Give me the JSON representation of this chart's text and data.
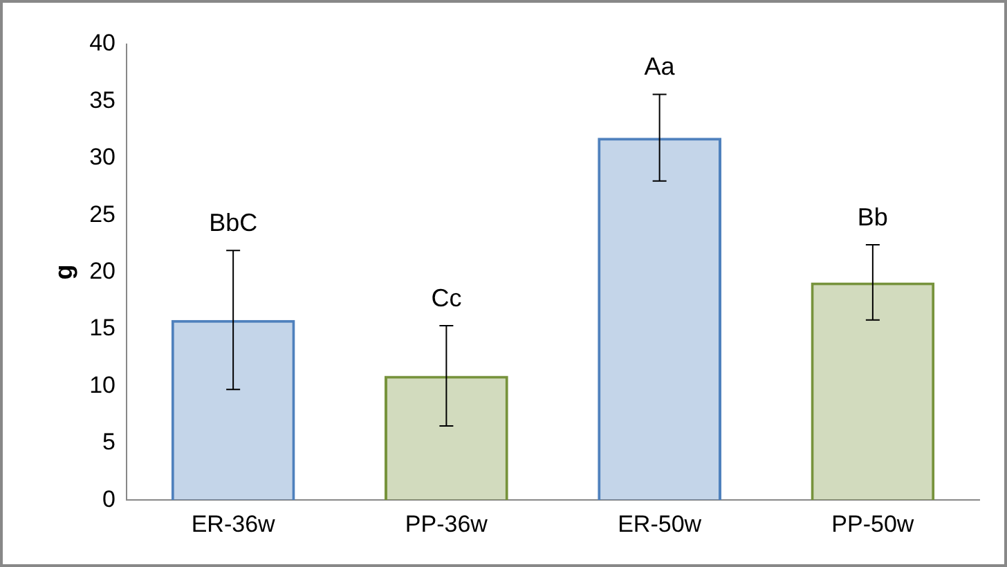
{
  "chart_data": {
    "type": "bar",
    "ylabel": "g",
    "categories": [
      "ER-36w",
      "PP-36w",
      "ER-50w",
      "PP-50w"
    ],
    "values": [
      15.8,
      10.9,
      31.8,
      19.1
    ],
    "colors": [
      "#4f81bd",
      "#77933c",
      "#4f81bd",
      "#77933c"
    ],
    "errors": [
      6.1,
      4.4,
      3.8,
      3.3
    ],
    "ylim": [
      0,
      40
    ],
    "yticks": [
      0,
      5,
      10,
      15,
      20,
      25,
      30,
      35,
      40
    ],
    "grid": false,
    "legend": false,
    "annotations": [
      {
        "text": "BbC",
        "x": "ER-36w",
        "y": 21.9
      },
      {
        "text": "Cc",
        "x": "PP-36w",
        "y": 15.3
      },
      {
        "text": "Aa",
        "x": "ER-50w",
        "y": 35.6
      },
      {
        "text": "Bb",
        "x": "PP-50w",
        "y": 22.4
      }
    ]
  }
}
